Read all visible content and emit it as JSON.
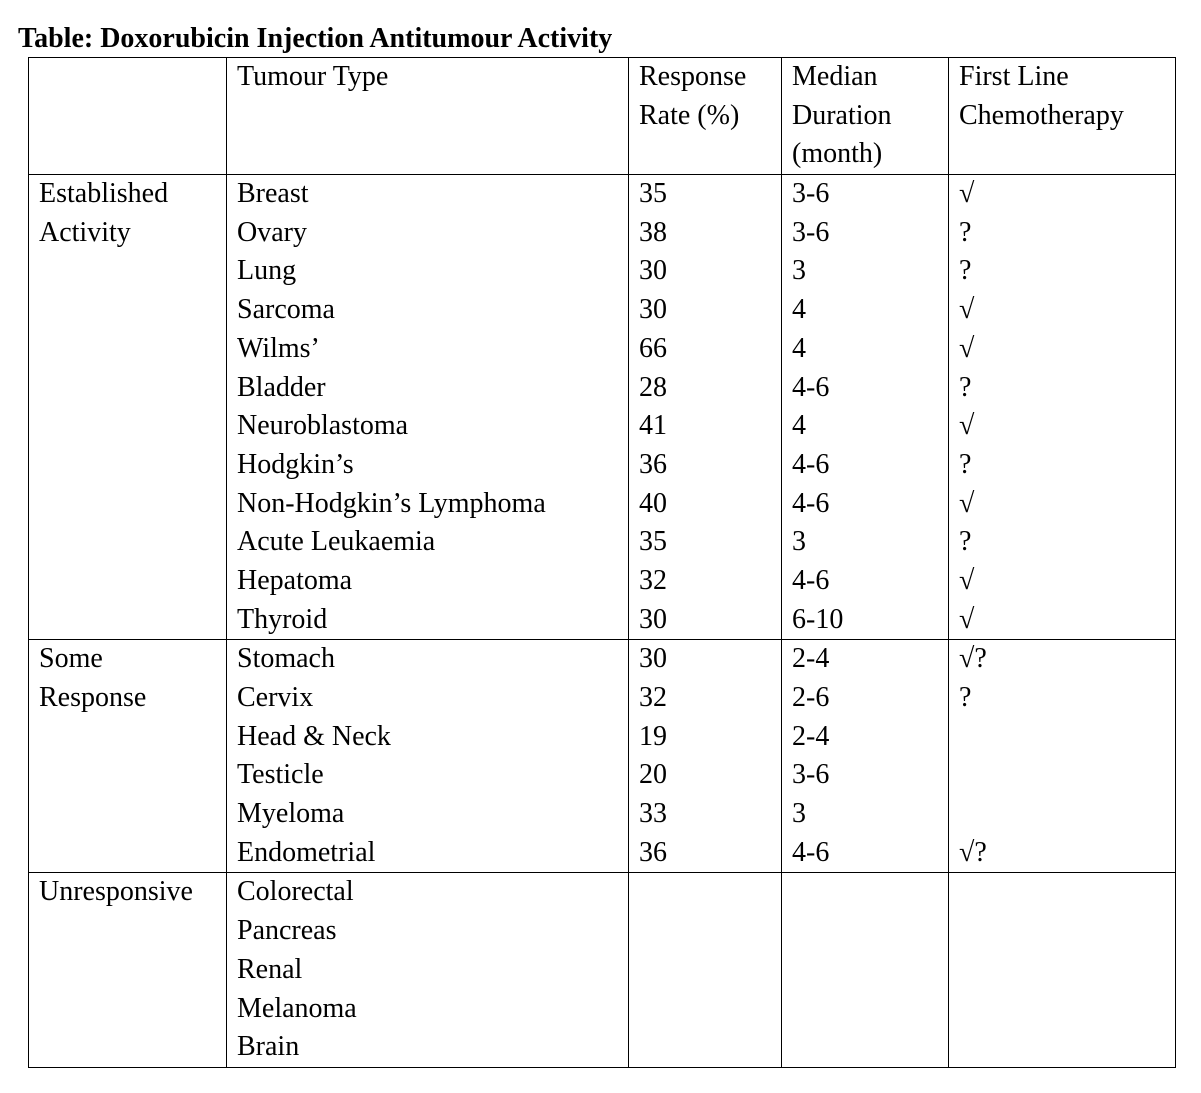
{
  "title": "Table: Doxorubicin Injection Antitumour Activity",
  "table": {
    "headers": [
      "Tumour Type",
      "Response Rate (%)",
      "Median Duration (month)",
      "First Line Chemotherapy"
    ],
    "groups": [
      {
        "label": "Established Activity",
        "rows": [
          {
            "type": "Breast",
            "rate": 35,
            "duration": "3-6",
            "first_line": "√"
          },
          {
            "type": "Ovary",
            "rate": 38,
            "duration": "3-6",
            "first_line": "?"
          },
          {
            "type": "Lung",
            "rate": 30,
            "duration": "3",
            "first_line": "?"
          },
          {
            "type": "Sarcoma",
            "rate": 30,
            "duration": "4",
            "first_line": "√"
          },
          {
            "type": "Wilms’",
            "rate": 66,
            "duration": "4",
            "first_line": "√"
          },
          {
            "type": "Bladder",
            "rate": 28,
            "duration": "4-6",
            "first_line": "?"
          },
          {
            "type": "Neuroblastoma",
            "rate": 41,
            "duration": "4",
            "first_line": "√"
          },
          {
            "type": "Hodgkin’s",
            "rate": 36,
            "duration": "4-6",
            "first_line": "?"
          },
          {
            "type": "Non-Hodgkin’s Lymphoma",
            "rate": 40,
            "duration": "4-6",
            "first_line": "√"
          },
          {
            "type": "Acute Leukaemia",
            "rate": 35,
            "duration": "3",
            "first_line": "?"
          },
          {
            "type": "Hepatoma",
            "rate": 32,
            "duration": "4-6",
            "first_line": "√"
          },
          {
            "type": "Thyroid",
            "rate": 30,
            "duration": "6-10",
            "first_line": "√"
          }
        ]
      },
      {
        "label": "Some Response",
        "rows": [
          {
            "type": "Stomach",
            "rate": 30,
            "duration": "2-4",
            "first_line": "√?"
          },
          {
            "type": "Cervix",
            "rate": 32,
            "duration": "2-6",
            "first_line": "?"
          },
          {
            "type": "Head & Neck",
            "rate": 19,
            "duration": "2-4"
          },
          {
            "type": "Testicle",
            "rate": 20,
            "duration": "3-6"
          },
          {
            "type": "Myeloma",
            "rate": 33,
            "duration": "3"
          },
          {
            "type": "Endometrial",
            "rate": 36,
            "duration": "4-6",
            "first_line": "√?"
          }
        ]
      },
      {
        "label": "Unresponsive",
        "rows": [
          {
            "type": "Colorectal"
          },
          {
            "type": "Pancreas"
          },
          {
            "type": "Renal"
          },
          {
            "type": "Melanoma"
          },
          {
            "type": "Brain"
          }
        ]
      }
    ]
  }
}
